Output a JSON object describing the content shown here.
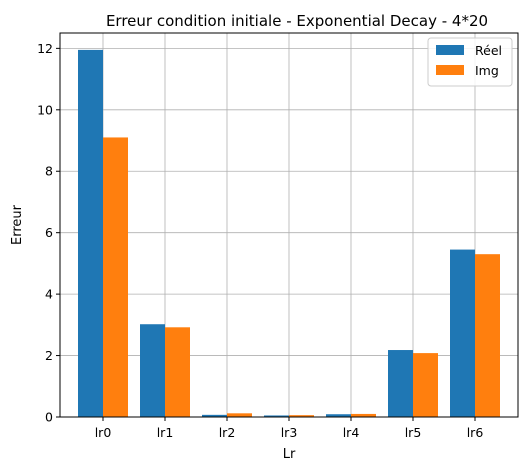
{
  "chart_data": {
    "type": "bar",
    "title": "Erreur condition initiale - Exponential Decay - 4*20",
    "xlabel": "Lr",
    "ylabel": "Erreur",
    "categories": [
      "lr0",
      "lr1",
      "lr2",
      "lr3",
      "lr4",
      "lr5",
      "lr6"
    ],
    "series": [
      {
        "name": "Réel",
        "color": "#1f77b4",
        "values": [
          11.95,
          3.02,
          0.07,
          0.05,
          0.09,
          2.18,
          5.45
        ]
      },
      {
        "name": "Img",
        "color": "#ff7f0e",
        "values": [
          9.1,
          2.92,
          0.12,
          0.06,
          0.1,
          2.08,
          5.3
        ]
      }
    ],
    "ylim": [
      0,
      12.5
    ],
    "yticks": [
      0,
      2,
      4,
      6,
      8,
      10,
      12
    ],
    "grid": true,
    "legend_position": "top-right"
  }
}
